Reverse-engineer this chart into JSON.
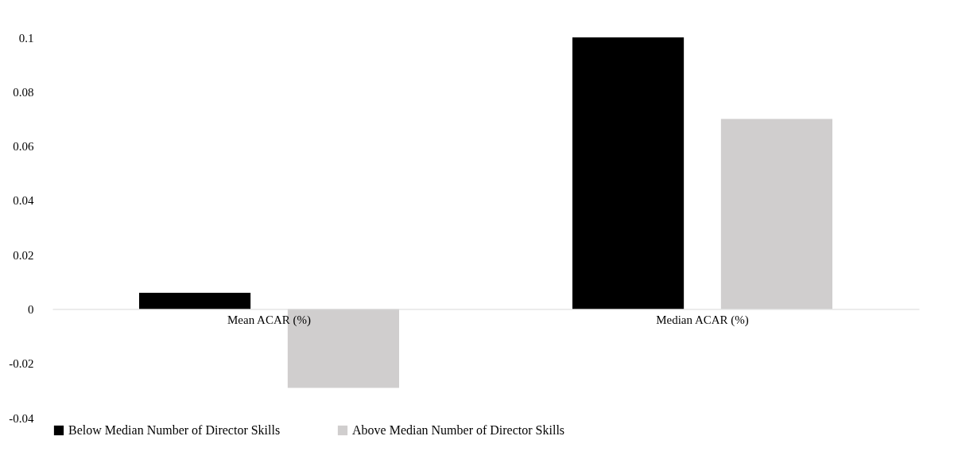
{
  "chart_data": {
    "type": "bar",
    "categories": [
      "Mean ACAR (%)",
      "Median ACAR (%)"
    ],
    "series": [
      {
        "name": "Below Median Number of Director Skills",
        "color": "#000000",
        "values": [
          0.006,
          0.1
        ]
      },
      {
        "name": "Above Median Number of Director Skills",
        "color": "#d0cece",
        "values": [
          -0.029,
          0.07
        ]
      }
    ],
    "ylim": [
      -0.04,
      0.1
    ],
    "yticks": [
      -0.04,
      -0.02,
      0,
      0.02,
      0.04,
      0.06,
      0.08,
      0.1
    ],
    "grid": false,
    "legend": "bottom"
  }
}
